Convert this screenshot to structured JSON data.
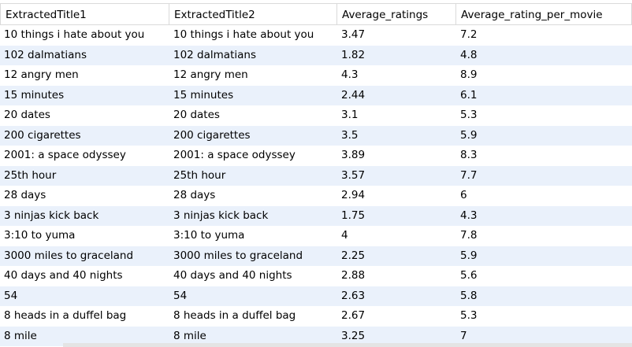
{
  "columns": [
    "ExtractedTitle1",
    "ExtractedTitle2",
    "Average_ratings",
    "Average_rating_per_movie"
  ],
  "rows": [
    [
      "10 things i hate about you",
      "10 things i hate about you",
      "3.47",
      "7.2"
    ],
    [
      "102 dalmatians",
      "102 dalmatians",
      "1.82",
      "4.8"
    ],
    [
      "12 angry men",
      "12 angry men",
      "4.3",
      "8.9"
    ],
    [
      "15 minutes",
      "15 minutes",
      "2.44",
      "6.1"
    ],
    [
      "20 dates",
      "20 dates",
      "3.1",
      "5.3"
    ],
    [
      "200 cigarettes",
      "200 cigarettes",
      "3.5",
      "5.9"
    ],
    [
      "2001: a space odyssey",
      "2001: a space odyssey",
      "3.89",
      "8.3"
    ],
    [
      "25th hour",
      "25th hour",
      "3.57",
      "7.7"
    ],
    [
      "28 days",
      "28 days",
      "2.94",
      "6"
    ],
    [
      "3 ninjas kick back",
      "3 ninjas kick back",
      "1.75",
      "4.3"
    ],
    [
      "3:10 to yuma",
      "3:10 to yuma",
      "4",
      "7.8"
    ],
    [
      "3000 miles to graceland",
      "3000 miles to graceland",
      "2.25",
      "5.9"
    ],
    [
      "40 days and 40 nights",
      "40 days and 40 nights",
      "2.88",
      "5.6"
    ],
    [
      "54",
      "54",
      "2.63",
      "5.8"
    ],
    [
      "8 heads in a duffel bag",
      "8 heads in a duffel bag",
      "2.67",
      "5.3"
    ],
    [
      "8 mile",
      "8 mile",
      "3.25",
      "7"
    ]
  ]
}
